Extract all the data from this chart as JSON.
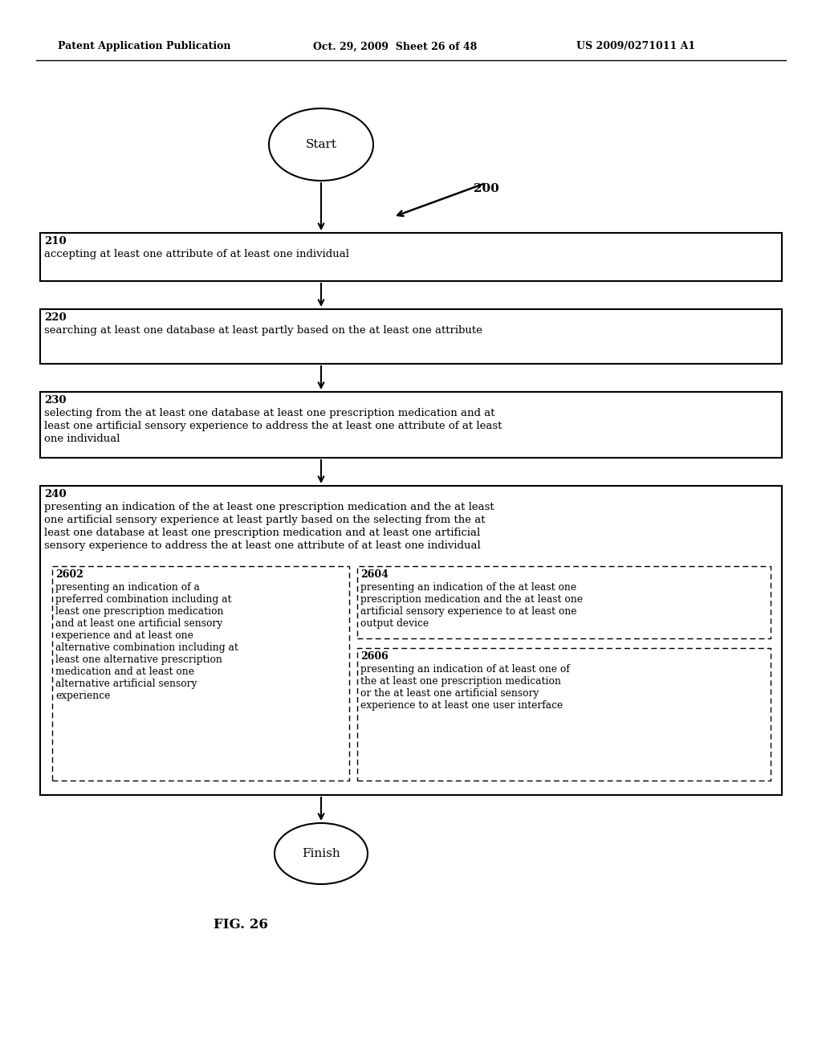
{
  "bg_color": "#ffffff",
  "header_left": "Patent Application Publication",
  "header_mid": "Oct. 29, 2009  Sheet 26 of 48",
  "header_right": "US 2009/0271011 A1",
  "fig_label": "FIG. 26",
  "diagram_label": "200",
  "start_label": "Start",
  "finish_label": "Finish",
  "box210_label": "210",
  "box210_text": "accepting at least one attribute of at least one individual",
  "box220_label": "220",
  "box220_text": "searching at least one database at least partly based on the at least one attribute",
  "box230_label": "230",
  "box230_line1": "selecting from the at least one database at least one prescription medication and at",
  "box230_line2": "least one artificial sensory experience to address the at least one attribute of at least",
  "box230_line3": "one individual",
  "box240_label": "240",
  "box240_line1": "presenting an indication of the at least one prescription medication and the at least",
  "box240_line2": "one artificial sensory experience at least partly based on the selecting from the at",
  "box240_line3": "least one database at least one prescription medication and at least one artificial",
  "box240_line4": "sensory experience to address the at least one attribute of at least one individual",
  "box2602_label": "2602",
  "box2602_line1": "presenting an indication of a",
  "box2602_line2": "preferred combination including at",
  "box2602_line3": "least one prescription medication",
  "box2602_line4": "and at least one artificial sensory",
  "box2602_line5": "experience and at least one",
  "box2602_line6": "alternative combination including at",
  "box2602_line7": "least one alternative prescription",
  "box2602_line8": "medication and at least one",
  "box2602_line9": "alternative artificial sensory",
  "box2602_line10": "experience",
  "box2604_label": "2604",
  "box2604_line1": "presenting an indication of the at least one",
  "box2604_line2": "prescription medication and the at least one",
  "box2604_line3": "artificial sensory experience to at least one",
  "box2604_line4": "output device",
  "box2606_label": "2606",
  "box2606_line1": "presenting an indication of at least one of",
  "box2606_line2": "the at least one prescription medication",
  "box2606_line3": "or the at least one artificial sensory",
  "box2606_line4": "experience to at least one user interface"
}
